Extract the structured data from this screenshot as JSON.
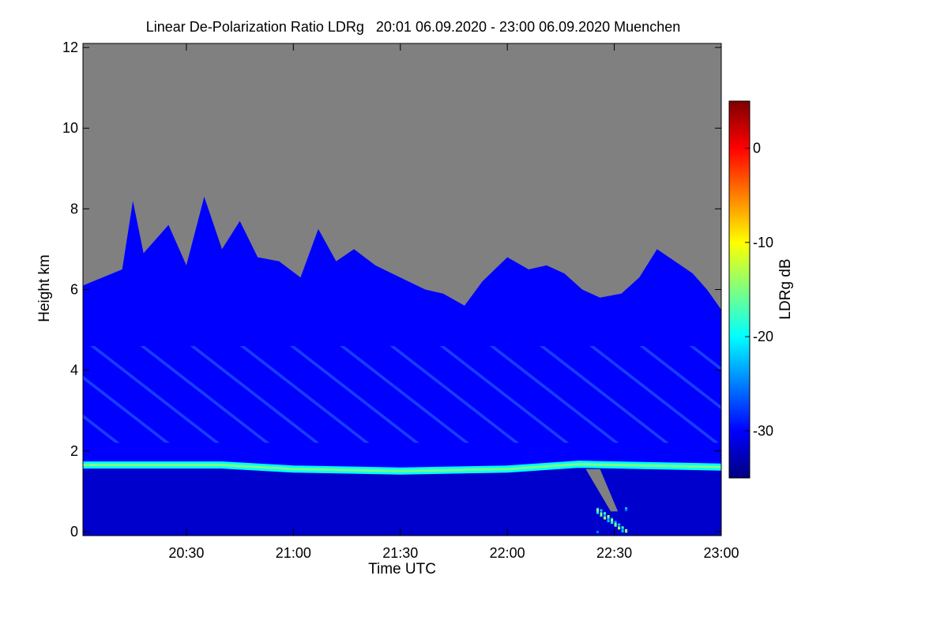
{
  "chart_data": {
    "type": "heatmap",
    "title": "Linear De-Polarization Ratio LDRg   20:01 06.09.2020 - 23:00 06.09.2020 Muenchen",
    "xlabel": "Time UTC",
    "ylabel": "Height km",
    "colorbar_label": "LDRg dB",
    "x_range_minutes_utc": [
      1201,
      1380
    ],
    "x_ticks": [
      {
        "minute": 1230,
        "label": "20:30"
      },
      {
        "minute": 1260,
        "label": "21:00"
      },
      {
        "minute": 1290,
        "label": "21:30"
      },
      {
        "minute": 1320,
        "label": "22:00"
      },
      {
        "minute": 1350,
        "label": "22:30"
      },
      {
        "minute": 1380,
        "label": "23:00"
      }
    ],
    "y_range_km": [
      -0.1,
      12.1
    ],
    "y_ticks": [
      0,
      2,
      4,
      6,
      8,
      10,
      12
    ],
    "colorbar_range_db": [
      -35,
      5
    ],
    "colorbar_ticks": [
      0,
      -10,
      -20,
      -30
    ],
    "no_data_color": "#808080",
    "colormap": [
      "#00007f",
      "#0000ff",
      "#007fff",
      "#00ffff",
      "#7fff7f",
      "#ffff00",
      "#ff7f00",
      "#ff0000",
      "#7f0000"
    ],
    "layers": {
      "aerosol_layer_ldr_db": -33,
      "cloud_top_height_km": [
        {
          "t": 1201,
          "h": 6.1
        },
        {
          "t": 1212,
          "h": 6.5
        },
        {
          "t": 1215,
          "h": 8.2
        },
        {
          "t": 1218,
          "h": 6.9
        },
        {
          "t": 1225,
          "h": 7.6
        },
        {
          "t": 1230,
          "h": 6.6
        },
        {
          "t": 1235,
          "h": 8.3
        },
        {
          "t": 1240,
          "h": 7.0
        },
        {
          "t": 1245,
          "h": 7.7
        },
        {
          "t": 1250,
          "h": 6.8
        },
        {
          "t": 1256,
          "h": 6.7
        },
        {
          "t": 1262,
          "h": 6.3
        },
        {
          "t": 1267,
          "h": 7.5
        },
        {
          "t": 1272,
          "h": 6.7
        },
        {
          "t": 1277,
          "h": 7.0
        },
        {
          "t": 1283,
          "h": 6.6
        },
        {
          "t": 1290,
          "h": 6.3
        },
        {
          "t": 1297,
          "h": 6.0
        },
        {
          "t": 1302,
          "h": 5.9
        },
        {
          "t": 1308,
          "h": 5.6
        },
        {
          "t": 1313,
          "h": 6.2
        },
        {
          "t": 1320,
          "h": 6.8
        },
        {
          "t": 1326,
          "h": 6.5
        },
        {
          "t": 1331,
          "h": 6.6
        },
        {
          "t": 1336,
          "h": 6.4
        },
        {
          "t": 1341,
          "h": 6.0
        },
        {
          "t": 1346,
          "h": 5.8
        },
        {
          "t": 1352,
          "h": 5.9
        },
        {
          "t": 1357,
          "h": 6.3
        },
        {
          "t": 1362,
          "h": 7.0
        },
        {
          "t": 1367,
          "h": 6.7
        },
        {
          "t": 1372,
          "h": 6.4
        },
        {
          "t": 1376,
          "h": 6.0
        },
        {
          "t": 1380,
          "h": 5.5
        }
      ],
      "cloud_ldr_db": -30,
      "boundary_layer_top_km": [
        {
          "t": 1201,
          "h": 1.7
        },
        {
          "t": 1240,
          "h": 1.7
        },
        {
          "t": 1260,
          "h": 1.6
        },
        {
          "t": 1290,
          "h": 1.55
        },
        {
          "t": 1320,
          "h": 1.6
        },
        {
          "t": 1340,
          "h": 1.72
        },
        {
          "t": 1380,
          "h": 1.65
        }
      ],
      "boundary_layer_ldr_db": -20,
      "lower_ldr_db": -32
    }
  }
}
